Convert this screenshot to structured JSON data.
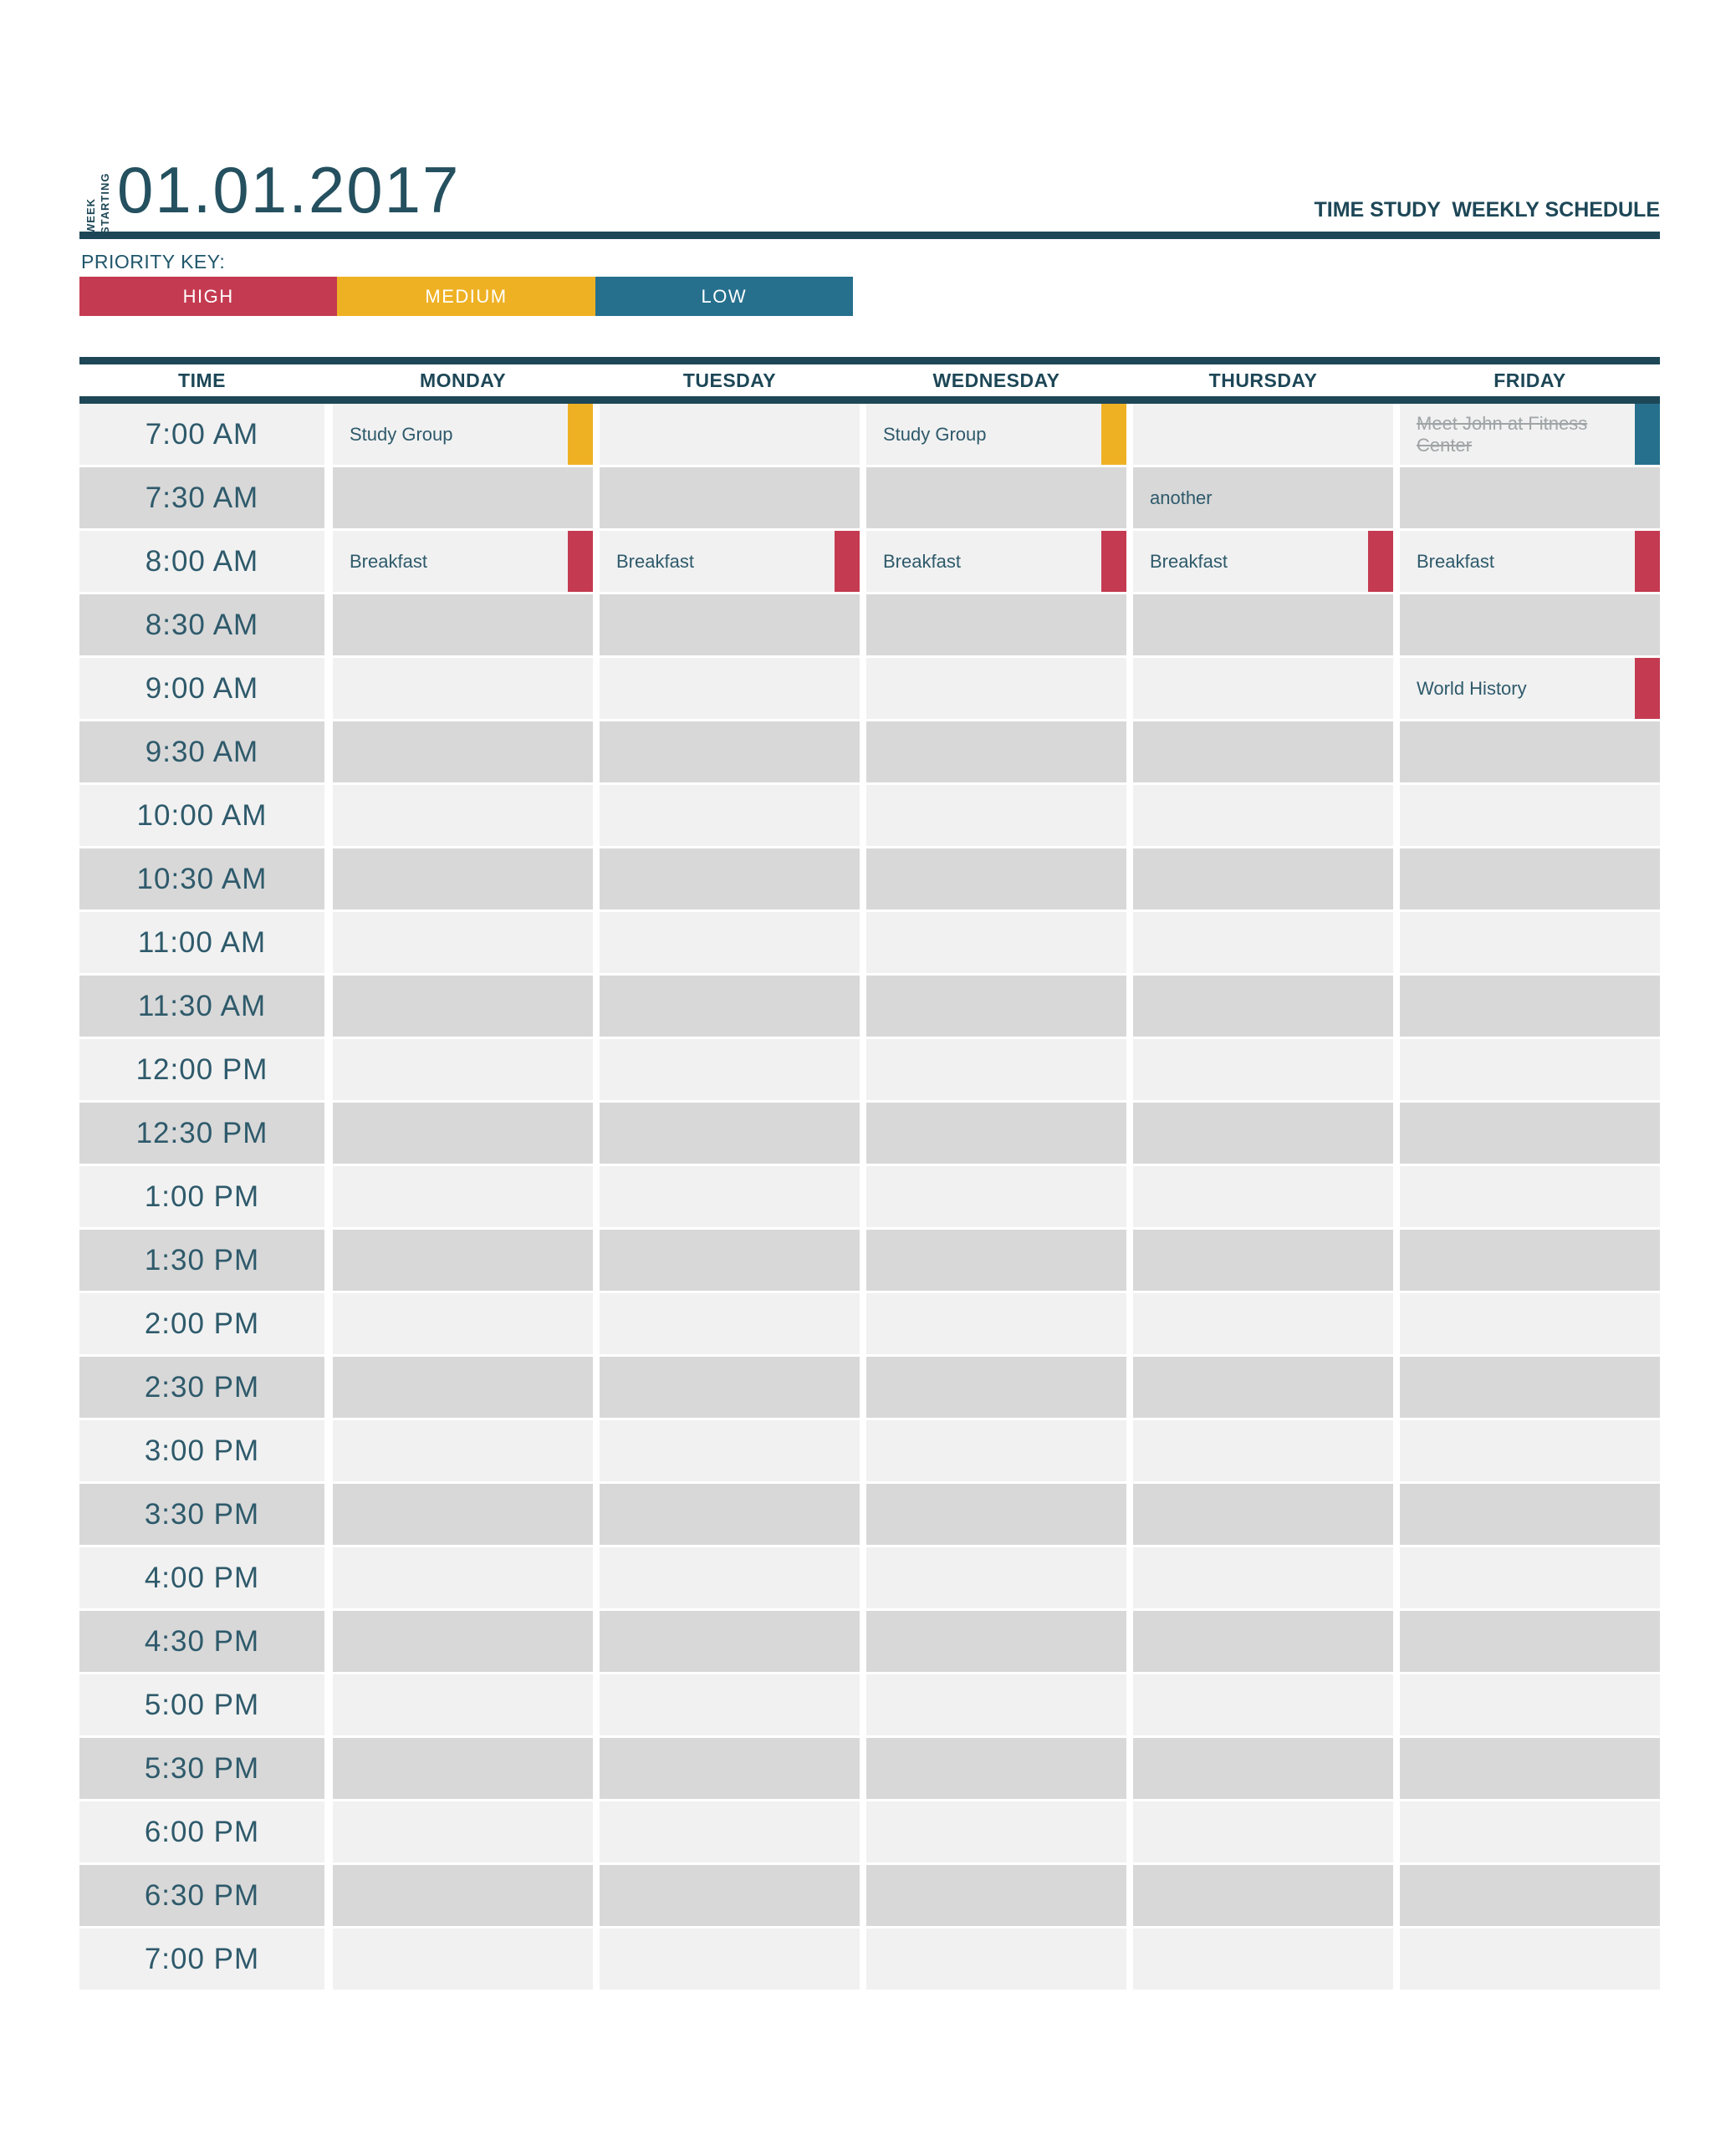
{
  "header": {
    "week_label": "WEEK",
    "starting_label": "STARTING",
    "date": "01.01.2017",
    "doc_title": "TIME STUDY  WEEKLY SCHEDULE"
  },
  "priority_key": {
    "label": "PRIORITY KEY:",
    "levels": [
      {
        "name": "HIGH",
        "color": "#c43b51"
      },
      {
        "name": "MEDIUM",
        "color": "#efb124"
      },
      {
        "name": "LOW",
        "color": "#26708e"
      }
    ]
  },
  "schedule": {
    "columns": [
      "TIME",
      "MONDAY",
      "TUESDAY",
      "WEDNESDAY",
      "THURSDAY",
      "FRIDAY"
    ],
    "times": [
      "7:00 AM",
      "7:30 AM",
      "8:00 AM",
      "8:30 AM",
      "9:00 AM",
      "9:30 AM",
      "10:00 AM",
      "10:30 AM",
      "11:00 AM",
      "11:30 AM",
      "12:00 PM",
      "12:30 PM",
      "1:00 PM",
      "1:30 PM",
      "2:00 PM",
      "2:30 PM",
      "3:00 PM",
      "3:30 PM",
      "4:00 PM",
      "4:30 PM",
      "5:00 PM",
      "5:30 PM",
      "6:00 PM",
      "6:30 PM",
      "7:00 PM"
    ],
    "events": [
      {
        "time": "7:00 AM",
        "day": "MONDAY",
        "title": "Study Group",
        "priority": "MEDIUM",
        "completed": false
      },
      {
        "time": "7:00 AM",
        "day": "WEDNESDAY",
        "title": "Study Group",
        "priority": "MEDIUM",
        "completed": false
      },
      {
        "time": "7:00 AM",
        "day": "FRIDAY",
        "title": "Meet John at Fitness Center",
        "priority": "LOW",
        "completed": true
      },
      {
        "time": "7:30 AM",
        "day": "THURSDAY",
        "title": "another",
        "priority": null,
        "completed": false
      },
      {
        "time": "8:00 AM",
        "day": "MONDAY",
        "title": "Breakfast",
        "priority": "HIGH",
        "completed": false
      },
      {
        "time": "8:00 AM",
        "day": "TUESDAY",
        "title": "Breakfast",
        "priority": "HIGH",
        "completed": false
      },
      {
        "time": "8:00 AM",
        "day": "WEDNESDAY",
        "title": "Breakfast",
        "priority": "HIGH",
        "completed": false
      },
      {
        "time": "8:00 AM",
        "day": "THURSDAY",
        "title": "Breakfast",
        "priority": "HIGH",
        "completed": false
      },
      {
        "time": "8:00 AM",
        "day": "FRIDAY",
        "title": "Breakfast",
        "priority": "HIGH",
        "completed": false
      },
      {
        "time": "9:00 AM",
        "day": "FRIDAY",
        "title": "World History",
        "priority": "HIGH",
        "completed": false
      }
    ]
  },
  "theme": {
    "dark_teal": "#1d4757",
    "text_teal": "#2e5a6b",
    "row_light": "#f1f1f1",
    "row_dark": "#d8d8d8",
    "completed_text": "#9fa4a6"
  }
}
